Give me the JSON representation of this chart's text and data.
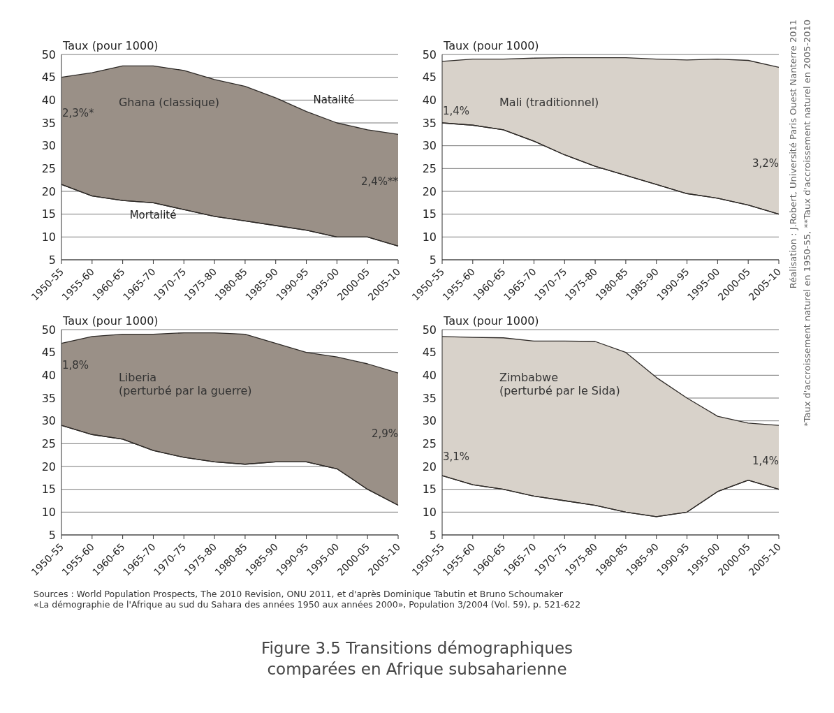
{
  "chart_data": [
    {
      "type": "area",
      "ylabel": "Taux (pour 1000)",
      "categories": [
        "1950-55",
        "1955-60",
        "1960-65",
        "1965-70",
        "1970-75",
        "1975-80",
        "1980-85",
        "1985-90",
        "1990-95",
        "1995-00",
        "2000-05",
        "2005-10"
      ],
      "ylim": [
        5,
        50
      ],
      "yticks": [
        5,
        10,
        15,
        20,
        25,
        30,
        35,
        40,
        45,
        50
      ],
      "grid": "y",
      "series": [
        {
          "type": "area",
          "name": "Natalité",
          "color": "#9a9087",
          "values": [
            45,
            46,
            47.5,
            47.5,
            46.5,
            44.5,
            43,
            40.5,
            37.5,
            35,
            33.5,
            32.5
          ]
        },
        {
          "type": "line",
          "name": "Mortalité",
          "color": "#2e2a27",
          "values": [
            21.5,
            19,
            18,
            17.5,
            16,
            14.5,
            13.5,
            12.5,
            11.5,
            10,
            10,
            8
          ]
        }
      ],
      "annotations": [
        "Ghana (classique)",
        {
          "text": "2,3%*",
          "x": "1950-55",
          "y": 37
        },
        {
          "text": "2,4%**",
          "x": "2005-10",
          "y": 22
        }
      ]
    },
    {
      "type": "area",
      "ylabel": "Taux (pour 1000)",
      "categories": [
        "1950-55",
        "1955-60",
        "1960-65",
        "1965-70",
        "1970-75",
        "1975-80",
        "1980-85",
        "1985-90",
        "1990-95",
        "1995-00",
        "2000-05",
        "2005-10"
      ],
      "ylim": [
        5,
        50
      ],
      "yticks": [
        5,
        10,
        15,
        20,
        25,
        30,
        35,
        40,
        45,
        50
      ],
      "grid": "y",
      "series": [
        {
          "type": "area",
          "color": "#d8d2ca",
          "values": [
            48.5,
            49,
            49,
            49.2,
            49.3,
            49.3,
            49.3,
            49,
            48.8,
            49,
            48.7,
            47.2
          ]
        },
        {
          "type": "line",
          "color": "#2e2a27",
          "values": [
            35,
            34.5,
            33.5,
            31,
            28,
            25.5,
            23.5,
            21.5,
            19.5,
            18.5,
            17,
            15
          ]
        }
      ],
      "annotations": [
        "Mali (traditionnel)",
        {
          "text": "1,4%",
          "x": "1950-55",
          "y": 37.5
        },
        {
          "text": "3,2%",
          "x": "2005-10",
          "y": 26
        }
      ]
    },
    {
      "type": "area",
      "ylabel": "Taux (pour 1000)",
      "categories": [
        "1950-55",
        "1955-60",
        "1960-65",
        "1965-70",
        "1970-75",
        "1975-80",
        "1980-85",
        "1985-90",
        "1990-95",
        "1995-00",
        "2000-05",
        "2005-10"
      ],
      "ylim": [
        5,
        50
      ],
      "yticks": [
        5,
        10,
        15,
        20,
        25,
        30,
        35,
        40,
        45,
        50
      ],
      "grid": "y",
      "series": [
        {
          "type": "area",
          "color": "#9a9087",
          "values": [
            47,
            48.5,
            49,
            49,
            49.3,
            49.3,
            49,
            47,
            45,
            44,
            42.5,
            40.5
          ]
        },
        {
          "type": "line",
          "color": "#2e2a27",
          "values": [
            29,
            27,
            26,
            23.5,
            22,
            21,
            20.5,
            21,
            21,
            19.5,
            15,
            11.5
          ]
        }
      ],
      "annotations": [
        "Liberia\n(perturbé par la guerre)",
        {
          "text": "1,8%",
          "x": "1950-55",
          "y": 42
        },
        {
          "text": "2,9%",
          "x": "2005-10",
          "y": 27
        }
      ]
    },
    {
      "type": "area",
      "ylabel": "Taux (pour 1000)",
      "categories": [
        "1950-55",
        "1955-60",
        "1960-65",
        "1965-70",
        "1970-75",
        "1975-80",
        "1980-85",
        "1985-90",
        "1990-95",
        "1995-00",
        "2000-05",
        "2005-10"
      ],
      "ylim": [
        5,
        50
      ],
      "yticks": [
        5,
        10,
        15,
        20,
        25,
        30,
        35,
        40,
        45,
        50
      ],
      "grid": "y",
      "series": [
        {
          "type": "area",
          "color": "#d8d2ca",
          "values": [
            48.5,
            48.3,
            48.2,
            47.5,
            47.5,
            47.4,
            45,
            39.5,
            35,
            31,
            29.5,
            29
          ]
        },
        {
          "type": "line",
          "color": "#2e2a27",
          "values": [
            18,
            16,
            15,
            13.5,
            12.5,
            11.5,
            10,
            9,
            10,
            14.5,
            17,
            15
          ]
        }
      ],
      "annotations": [
        "Zimbabwe\n(perturbé par le Sida)",
        {
          "text": "3,1%",
          "x": "1950-55",
          "y": 22
        },
        {
          "text": "1,4%",
          "x": "2005-10",
          "y": 21
        }
      ]
    },
    {
      "type": "other",
      "title": "Figure 3.5 Transitions démographiques\ncomparées en Afrique subsaharienne",
      "annotations": [
        "Sources : World Population Prospects, The 2010 Revision, ONU 2011, et d'après Dominique Tabutin et Bruno Schoumaker\n«La démographie de l'Afrique au sud du Sahara des années 1950 aux années 2000», Population 3/2004 (Vol. 59), p. 521-622",
        "Réalisation : J.Robert, Université Paris Ouest Nanterre 2011\n*Taux d'accroissement naturel en 1950-55, **Taux d'accroissement naturel en 2005-2010"
      ]
    }
  ]
}
